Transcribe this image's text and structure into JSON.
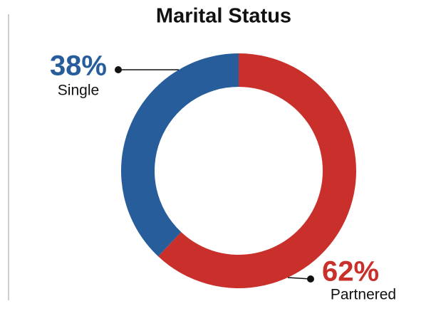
{
  "chart_data": {
    "type": "pie",
    "donut": true,
    "title": "Marital Status",
    "categories": [
      "Single",
      "Partnered"
    ],
    "values": [
      38,
      62
    ],
    "value_labels": [
      "38%",
      "62%"
    ],
    "colors": [
      "#285d9c",
      "#c9302c"
    ]
  }
}
